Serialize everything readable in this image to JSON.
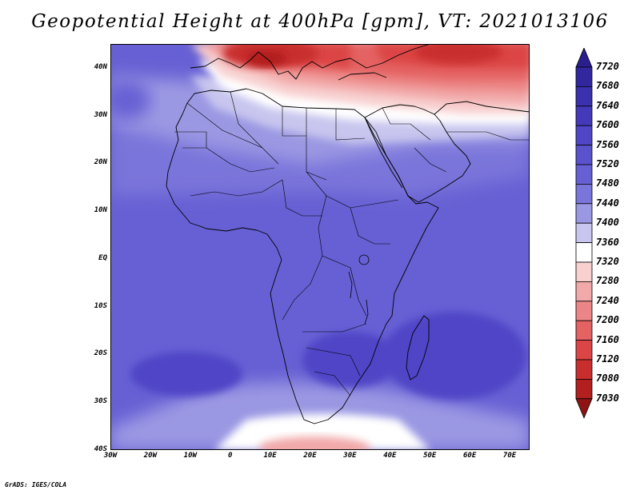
{
  "title": "Geopotential Height at 400hPa [gpm], VT: 2021013106",
  "credit": "GrADS: IGES/COLA",
  "map": {
    "region": "Africa",
    "lon_range": [
      -30,
      75
    ],
    "lat_range": [
      -40,
      45
    ],
    "lat_labels": [
      {
        "lat": 40,
        "text": "40N"
      },
      {
        "lat": 30,
        "text": "30N"
      },
      {
        "lat": 20,
        "text": "20N"
      },
      {
        "lat": 10,
        "text": "10N"
      },
      {
        "lat": 0,
        "text": "EQ"
      },
      {
        "lat": -10,
        "text": "10S"
      },
      {
        "lat": -20,
        "text": "20S"
      },
      {
        "lat": -30,
        "text": "30S"
      },
      {
        "lat": -40,
        "text": "40S"
      }
    ],
    "lon_labels": [
      {
        "lon": -30,
        "text": "30W"
      },
      {
        "lon": -20,
        "text": "20W"
      },
      {
        "lon": -10,
        "text": "10W"
      },
      {
        "lon": 0,
        "text": "0"
      },
      {
        "lon": 10,
        "text": "10E"
      },
      {
        "lon": 20,
        "text": "20E"
      },
      {
        "lon": 30,
        "text": "30E"
      },
      {
        "lon": 40,
        "text": "40E"
      },
      {
        "lon": 50,
        "text": "50E"
      },
      {
        "lon": 60,
        "text": "60E"
      },
      {
        "lon": 70,
        "text": "70E"
      }
    ]
  },
  "colorbar": {
    "levels": [
      "7720",
      "7680",
      "7640",
      "7600",
      "7560",
      "7520",
      "7480",
      "7440",
      "7400",
      "7360",
      "7320",
      "7280",
      "7240",
      "7200",
      "7160",
      "7120",
      "7080",
      "7030"
    ],
    "colors": [
      "#2b1f8f",
      "#33279f",
      "#3b30ae",
      "#4539bb",
      "#4f45c6",
      "#5a52cd",
      "#6760d4",
      "#7a75da",
      "#9b98e3",
      "#c8c6ee",
      "#ffffff",
      "#f8d0d0",
      "#f2a9a9",
      "#ec8585",
      "#e46262",
      "#dc4545",
      "#c92e2e",
      "#b11f1f",
      "#8f1414"
    ]
  }
}
